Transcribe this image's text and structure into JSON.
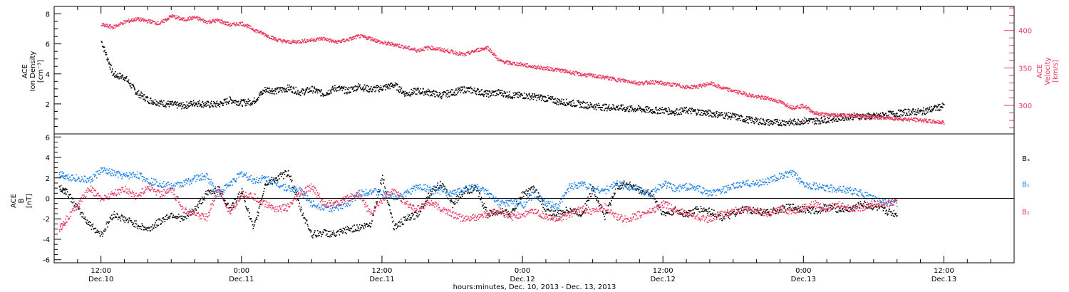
{
  "colors": {
    "black": "#000000",
    "red": "#e8375f",
    "blue": "#1f83e6"
  },
  "chart_data": [
    {
      "type": "scatter",
      "panel": "top",
      "ylabel": [
        "ACE",
        "Ion Density",
        "[cm⁻³]"
      ],
      "ylim": [
        0,
        8.5
      ],
      "yticks": [
        "2",
        "4",
        "6",
        "8"
      ],
      "ylabel_right": [
        "ACE",
        "Velocity",
        "[km/s]"
      ],
      "ylim_right": [
        262,
        432
      ],
      "yticks_right": [
        "300",
        "350",
        "400"
      ],
      "series": [
        {
          "name": "",
          "axis": "left",
          "color": "#000000",
          "x": [
            0,
            1,
            2,
            3,
            4,
            5,
            6,
            7,
            8,
            9,
            10,
            11,
            12,
            13,
            14,
            15,
            16,
            17,
            18,
            19,
            20,
            21,
            22,
            23,
            24,
            25,
            26,
            27,
            28,
            29,
            30,
            31,
            32,
            33,
            34,
            35,
            36,
            37,
            38,
            39,
            40,
            41,
            42,
            43,
            44,
            45,
            46,
            47,
            48,
            49,
            50,
            51,
            52,
            53,
            54,
            55,
            56,
            57,
            58,
            59,
            60,
            61,
            62,
            63,
            64,
            65,
            66,
            67,
            68,
            69,
            70,
            71,
            72
          ],
          "y": [
            6.2,
            4.0,
            3.8,
            2.8,
            2.3,
            2.1,
            2.0,
            1.9,
            2.1,
            2.0,
            2.0,
            2.3,
            2.1,
            2.2,
            3.0,
            2.9,
            3.1,
            2.8,
            3.0,
            2.7,
            3.1,
            2.9,
            3.2,
            3.0,
            3.1,
            3.3,
            2.7,
            2.9,
            2.8,
            2.6,
            2.8,
            3.0,
            2.9,
            2.7,
            2.8,
            2.6,
            2.6,
            2.5,
            2.4,
            2.2,
            2.1,
            2.0,
            1.9,
            1.8,
            1.8,
            1.7,
            1.7,
            1.6,
            1.6,
            1.5,
            1.6,
            1.5,
            1.4,
            1.3,
            1.2,
            1.0,
            0.9,
            0.8,
            0.8,
            0.8,
            0.9,
            0.9,
            1.0,
            1.1,
            1.2,
            1.2,
            1.2,
            1.3,
            1.4,
            1.5,
            1.5,
            1.7,
            1.9
          ]
        },
        {
          "name": "",
          "axis": "right",
          "color": "#e8375f",
          "x": [
            0,
            1,
            2,
            3,
            4,
            5,
            6,
            7,
            8,
            9,
            10,
            11,
            12,
            13,
            14,
            15,
            16,
            17,
            18,
            19,
            20,
            21,
            22,
            23,
            24,
            25,
            26,
            27,
            28,
            29,
            30,
            31,
            32,
            33,
            34,
            35,
            36,
            37,
            38,
            39,
            40,
            41,
            42,
            43,
            44,
            45,
            46,
            47,
            48,
            49,
            50,
            51,
            52,
            53,
            54,
            55,
            56,
            57,
            58,
            59,
            60,
            61,
            62,
            63,
            64,
            65,
            66,
            67,
            68,
            69,
            70,
            71,
            72
          ],
          "y": [
            408,
            405,
            412,
            416,
            413,
            410,
            420,
            415,
            418,
            412,
            414,
            408,
            410,
            402,
            395,
            388,
            385,
            386,
            388,
            390,
            385,
            388,
            393,
            390,
            384,
            382,
            378,
            374,
            378,
            375,
            372,
            368,
            374,
            378,
            360,
            357,
            355,
            352,
            350,
            348,
            345,
            342,
            340,
            338,
            335,
            333,
            330,
            332,
            330,
            328,
            325,
            326,
            330,
            324,
            320,
            316,
            312,
            310,
            305,
            298,
            300,
            290,
            288,
            288,
            287,
            286,
            285,
            284,
            283,
            282,
            281,
            279,
            278
          ]
        }
      ]
    },
    {
      "type": "scatter",
      "panel": "bottom",
      "ylabel": [
        "ACE",
        "B",
        "[nT]"
      ],
      "ylim": [
        -6.3,
        6.3
      ],
      "yticks": [
        "-6",
        "-4",
        "-2",
        "0",
        "2",
        "4",
        "6"
      ],
      "xlabel": "hours:minutes, Dec. 10, 2013 - Dec. 13, 2013",
      "xlim": [
        -4,
        78
      ],
      "xticks": [
        {
          "value": 0,
          "time": "12:00",
          "date": "Dec.10"
        },
        {
          "value": 12,
          "time": "0:00",
          "date": "Dec.11"
        },
        {
          "value": 24,
          "time": "12:00",
          "date": "Dec.11"
        },
        {
          "value": 36,
          "time": "0:00",
          "date": "Dec.12"
        },
        {
          "value": 48,
          "time": "12:00",
          "date": "Dec.12"
        },
        {
          "value": 60,
          "time": "0:00",
          "date": "Dec.13"
        },
        {
          "value": 72,
          "time": "12:00",
          "date": "Dec.13"
        }
      ],
      "legend": [
        "Bₓ",
        "Bᵧ",
        "B₂"
      ],
      "series": [
        {
          "name": "Bx",
          "color": "#000000",
          "x": [
            -3.6,
            -3,
            -2,
            -1,
            0,
            1,
            2,
            3,
            4,
            5,
            6,
            7,
            8,
            9,
            10,
            11,
            12,
            13,
            14,
            15,
            16,
            17,
            18,
            19,
            20,
            21,
            22,
            23,
            24,
            25,
            26,
            27,
            28,
            29,
            30,
            31,
            32,
            33,
            34,
            35,
            36,
            37,
            38,
            39,
            40,
            41,
            42,
            43,
            44,
            45,
            46,
            47,
            48,
            49,
            50,
            51,
            52,
            53,
            54,
            55,
            56,
            57,
            58,
            59,
            60,
            61,
            62,
            63,
            64,
            65,
            66,
            67,
            68
          ],
          "y": [
            1.0,
            0.8,
            -1.0,
            -2.5,
            -3.5,
            -1.5,
            -2.0,
            -2.5,
            -3.0,
            -2.2,
            -1.5,
            -2.0,
            -1.0,
            0.5,
            1.0,
            -1.0,
            0.8,
            -3.0,
            1.5,
            2.0,
            2.6,
            -1.0,
            -3.5,
            -3.3,
            -3.5,
            -3.0,
            -2.8,
            -2.5,
            2.2,
            -2.8,
            -2.0,
            -1.5,
            0.5,
            1.5,
            -0.5,
            0.8,
            1.0,
            -1.5,
            -1.2,
            -1.5,
            0.5,
            1.0,
            -1.2,
            -1.5,
            -1.0,
            -1.5,
            1.0,
            -1.8,
            1.2,
            1.5,
            0.8,
            0.5,
            -1.5,
            -1.2,
            -1.5,
            -1.0,
            -1.2,
            -1.8,
            -1.5,
            -1.0,
            -1.2,
            -1.4,
            -1.0,
            -0.8,
            -1.0,
            -1.2,
            -0.8,
            -1.0,
            -1.0,
            -0.5,
            -0.8,
            -1.2,
            -1.5
          ]
        },
        {
          "name": "By",
          "color": "#1f83e6",
          "x": [
            -3.6,
            -3,
            -2,
            -1,
            0,
            1,
            2,
            3,
            4,
            5,
            6,
            7,
            8,
            9,
            10,
            11,
            12,
            13,
            14,
            15,
            16,
            17,
            18,
            19,
            20,
            21,
            22,
            23,
            24,
            25,
            26,
            27,
            28,
            29,
            30,
            31,
            32,
            33,
            34,
            35,
            36,
            37,
            38,
            39,
            40,
            41,
            42,
            43,
            44,
            45,
            46,
            47,
            48,
            49,
            50,
            51,
            52,
            53,
            54,
            55,
            56,
            57,
            58,
            59,
            60,
            61,
            62,
            63,
            64,
            65,
            66,
            67,
            68
          ],
          "y": [
            2.5,
            2.2,
            2.0,
            1.8,
            2.8,
            2.5,
            2.2,
            2.4,
            1.8,
            1.5,
            1.2,
            1.5,
            2.0,
            2.2,
            0.5,
            1.5,
            2.5,
            1.8,
            2.0,
            1.5,
            1.0,
            0.8,
            -0.5,
            -0.8,
            -1.0,
            -0.5,
            0.5,
            0.8,
            0.5,
            0.2,
            0.5,
            1.2,
            1.0,
            0.8,
            0.5,
            1.0,
            1.2,
            0.5,
            -0.5,
            -0.3,
            -0.6,
            0.5,
            -0.5,
            -0.8,
            1.2,
            1.5,
            1.0,
            0.8,
            1.5,
            1.2,
            0.8,
            0.5,
            1.5,
            1.0,
            1.2,
            1.0,
            0.5,
            0.8,
            1.2,
            1.5,
            1.5,
            1.8,
            2.2,
            2.5,
            1.5,
            1.2,
            1.0,
            1.0,
            0.8,
            0.5,
            0.0,
            -0.3,
            -0.5
          ]
        },
        {
          "name": "Bz",
          "color": "#e8375f",
          "x": [
            -3.6,
            -3,
            -2,
            -1,
            0,
            1,
            2,
            3,
            4,
            5,
            6,
            7,
            8,
            9,
            10,
            11,
            12,
            13,
            14,
            15,
            16,
            17,
            18,
            19,
            20,
            21,
            22,
            23,
            24,
            25,
            26,
            27,
            28,
            29,
            30,
            31,
            32,
            33,
            34,
            35,
            36,
            37,
            38,
            39,
            40,
            41,
            42,
            43,
            44,
            45,
            46,
            47,
            48,
            49,
            50,
            51,
            52,
            53,
            54,
            55,
            56,
            57,
            58,
            59,
            60,
            61,
            62,
            63,
            64,
            65,
            66,
            67,
            68
          ],
          "y": [
            -3.0,
            -2.0,
            -0.5,
            1.0,
            0.0,
            0.5,
            1.0,
            0.2,
            1.2,
            0.5,
            0.8,
            -1.0,
            -1.5,
            -1.8,
            1.0,
            -1.5,
            0.5,
            0.2,
            -0.5,
            -1.0,
            -0.8,
            0.5,
            1.2,
            -0.5,
            -0.5,
            0.0,
            0.5,
            -1.5,
            0.0,
            0.8,
            -0.5,
            -1.0,
            -0.3,
            -1.0,
            -1.5,
            -2.0,
            -1.8,
            -1.5,
            -1.2,
            -1.8,
            -1.5,
            -1.2,
            -1.8,
            -2.0,
            -1.5,
            -1.0,
            -1.2,
            -0.8,
            -1.8,
            -2.0,
            -1.5,
            -1.2,
            -0.5,
            -1.0,
            -1.5,
            -1.8,
            -2.0,
            -1.5,
            -1.2,
            -1.0,
            -1.2,
            -1.5,
            -1.0,
            -1.2,
            -0.8,
            -0.5,
            -1.0,
            -0.5,
            -1.0,
            -0.8,
            -0.5,
            -0.5,
            -0.3
          ]
        }
      ]
    }
  ]
}
